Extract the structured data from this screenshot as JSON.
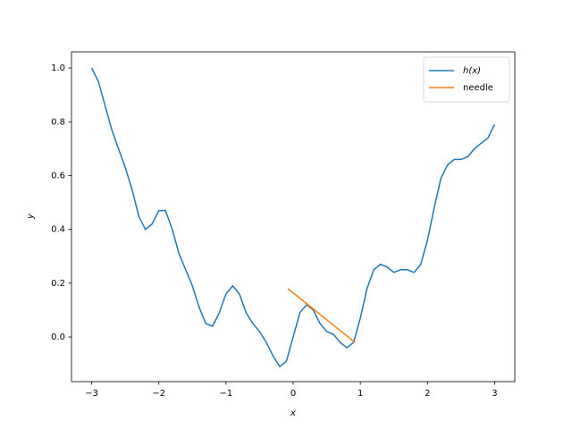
{
  "chart_data": {
    "type": "line",
    "xlabel": "x",
    "ylabel": "y",
    "xlim": [
      -3.3,
      3.3
    ],
    "ylim": [
      -0.166,
      1.06
    ],
    "xticks": [
      {
        "value": -3,
        "label": "−3"
      },
      {
        "value": -2,
        "label": "−2"
      },
      {
        "value": -1,
        "label": "−1"
      },
      0,
      1,
      2,
      3
    ],
    "yticks": [
      {
        "value": 0,
        "label": "0.0"
      },
      {
        "value": 0.2,
        "label": "0.2"
      },
      {
        "value": 0.4,
        "label": "0.4"
      },
      {
        "value": 0.6,
        "label": "0.6"
      },
      {
        "value": 0.8,
        "label": "0.8"
      },
      {
        "value": 1,
        "label": "1.0"
      }
    ],
    "legend": "upper right",
    "series": [
      {
        "name": "h(x)",
        "color": "#1f77b4",
        "x": [
          -3.0,
          -2.9,
          -2.8,
          -2.7,
          -2.6,
          -2.5,
          -2.4,
          -2.3,
          -2.2,
          -2.1,
          -2.0,
          -1.9,
          -1.8,
          -1.7,
          -1.6,
          -1.5,
          -1.4,
          -1.3,
          -1.2,
          -1.1,
          -1.0,
          -0.9,
          -0.8,
          -0.7,
          -0.6,
          -0.5,
          -0.4,
          -0.3,
          -0.2,
          -0.1,
          0.0,
          0.1,
          0.2,
          0.3,
          0.4,
          0.5,
          0.6,
          0.7,
          0.8,
          0.9,
          1.0,
          1.1,
          1.2,
          1.3,
          1.4,
          1.5,
          1.6,
          1.7,
          1.8,
          1.9,
          2.0,
          2.1,
          2.2,
          2.3,
          2.4,
          2.5,
          2.6,
          2.7,
          2.8,
          2.9,
          3.0
        ],
        "values": [
          1.0,
          0.95,
          0.86,
          0.77,
          0.7,
          0.63,
          0.55,
          0.45,
          0.4,
          0.42,
          0.47,
          0.47,
          0.4,
          0.31,
          0.25,
          0.19,
          0.11,
          0.05,
          0.04,
          0.09,
          0.16,
          0.19,
          0.16,
          0.09,
          0.05,
          0.02,
          -0.02,
          -0.07,
          -0.11,
          -0.09,
          0.0,
          0.09,
          0.12,
          0.1,
          0.05,
          0.02,
          0.01,
          -0.02,
          -0.04,
          -0.02,
          0.07,
          0.18,
          0.25,
          0.27,
          0.26,
          0.24,
          0.25,
          0.25,
          0.24,
          0.27,
          0.36,
          0.48,
          0.59,
          0.64,
          0.66,
          0.66,
          0.67,
          0.7,
          0.72,
          0.74,
          0.79
        ]
      },
      {
        "name": "needle",
        "color": "#ff7f0e",
        "x": [
          -0.08,
          0.92
        ],
        "values": [
          0.18,
          -0.02
        ]
      }
    ]
  }
}
